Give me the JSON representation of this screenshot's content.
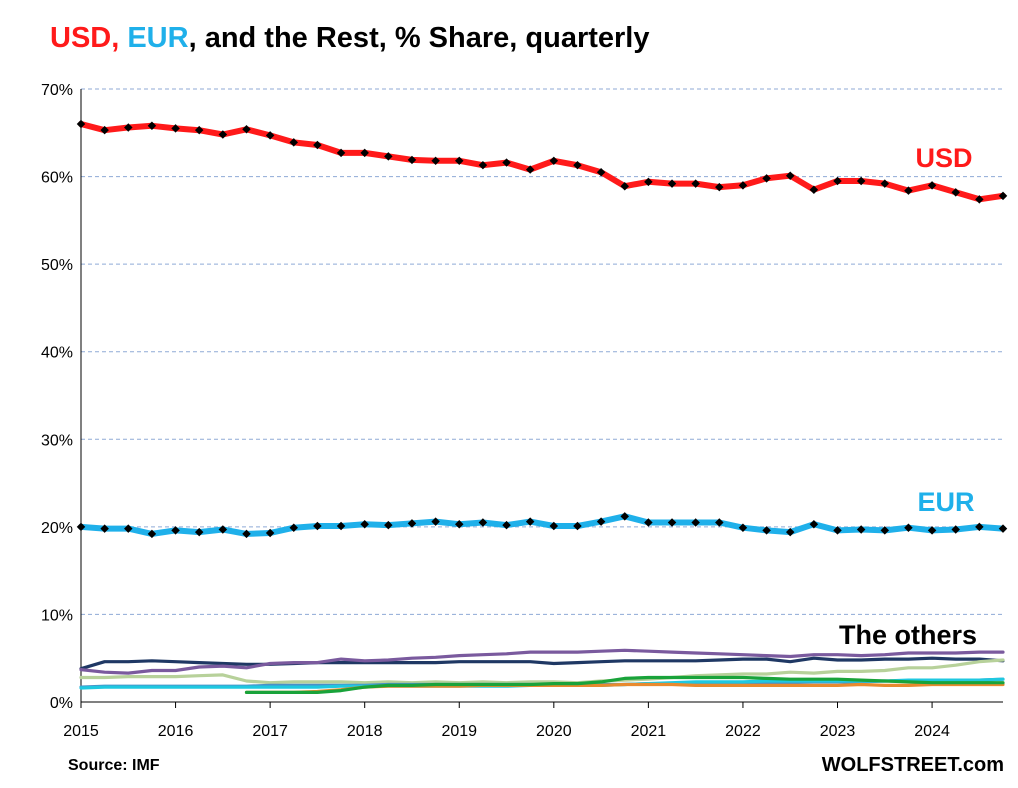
{
  "title": {
    "part1": "USD, ",
    "part2": "EUR",
    "part3": ", and the Rest, % Share, quarterly"
  },
  "source": "Source: IMF",
  "brand": "WOLFSTREET.com",
  "chart_data": {
    "type": "line",
    "title": "USD, EUR, and the Rest, % Share, quarterly",
    "xlabel": "",
    "ylabel": "",
    "x_ticks": [
      "2015",
      "2016",
      "2017",
      "2018",
      "2019",
      "2020",
      "2021",
      "2022",
      "2023",
      "2024"
    ],
    "y_ticks": [
      "0%",
      "10%",
      "20%",
      "30%",
      "40%",
      "50%",
      "60%",
      "70%"
    ],
    "ylim": [
      0,
      70
    ],
    "x_range": [
      "2015 Q1",
      "2024 Q4"
    ],
    "grid": "horizontal dashed",
    "annotations": [
      "USD",
      "EUR",
      "The others"
    ],
    "series": [
      {
        "name": "USD",
        "label": "USD",
        "color": "#ff1a1a",
        "markers": true,
        "start": "2015 Q1",
        "values": [
          66.0,
          65.3,
          65.6,
          65.8,
          65.5,
          65.3,
          64.8,
          65.4,
          64.7,
          63.9,
          63.6,
          62.7,
          62.7,
          62.3,
          61.9,
          61.8,
          61.8,
          61.3,
          61.6,
          60.8,
          61.8,
          61.3,
          60.5,
          58.9,
          59.4,
          59.2,
          59.2,
          58.8,
          59.0,
          59.8,
          60.1,
          58.5,
          59.5,
          59.5,
          59.2,
          58.4,
          59.0,
          58.2,
          57.4,
          57.8
        ]
      },
      {
        "name": "EUR",
        "label": "EUR",
        "color": "#1fb0ea",
        "markers": true,
        "start": "2015 Q1",
        "values": [
          20.0,
          19.8,
          19.8,
          19.2,
          19.6,
          19.4,
          19.7,
          19.2,
          19.3,
          19.9,
          20.1,
          20.1,
          20.3,
          20.2,
          20.4,
          20.6,
          20.3,
          20.5,
          20.2,
          20.6,
          20.1,
          20.1,
          20.6,
          21.2,
          20.5,
          20.5,
          20.5,
          20.5,
          19.9,
          19.6,
          19.4,
          20.3,
          19.6,
          19.7,
          19.6,
          19.9,
          19.6,
          19.7,
          20.0,
          19.8
        ]
      },
      {
        "color": "#1f3864",
        "start": "2015 Q1",
        "values": [
          3.8,
          4.6,
          4.6,
          4.7,
          4.6,
          4.5,
          4.4,
          4.3,
          4.3,
          4.4,
          4.5,
          4.5,
          4.5,
          4.5,
          4.5,
          4.5,
          4.6,
          4.6,
          4.6,
          4.6,
          4.4,
          4.5,
          4.6,
          4.7,
          4.7,
          4.7,
          4.7,
          4.8,
          4.9,
          4.9,
          4.6,
          5.0,
          4.8,
          4.8,
          4.9,
          4.9,
          5.0,
          4.9,
          4.9,
          4.7
        ]
      },
      {
        "color": "#7a5a9e",
        "start": "2015 Q1",
        "values": [
          3.7,
          3.4,
          3.3,
          3.6,
          3.6,
          4.0,
          4.1,
          3.9,
          4.4,
          4.5,
          4.5,
          4.9,
          4.7,
          4.8,
          5.0,
          5.1,
          5.3,
          5.4,
          5.5,
          5.7,
          5.7,
          5.7,
          5.8,
          5.9,
          5.8,
          5.7,
          5.6,
          5.5,
          5.4,
          5.3,
          5.2,
          5.4,
          5.4,
          5.3,
          5.4,
          5.6,
          5.6,
          5.6,
          5.7,
          5.7
        ]
      },
      {
        "color": "#b7d19a",
        "start": "2015 Q1",
        "values": [
          2.8,
          2.8,
          2.9,
          2.9,
          2.9,
          3.0,
          3.1,
          2.4,
          2.2,
          2.3,
          2.3,
          2.3,
          2.2,
          2.3,
          2.2,
          2.3,
          2.2,
          2.3,
          2.2,
          2.3,
          2.3,
          2.2,
          2.4,
          2.5,
          2.6,
          2.8,
          3.0,
          3.1,
          3.2,
          3.2,
          3.4,
          3.3,
          3.5,
          3.5,
          3.6,
          3.9,
          3.9,
          4.2,
          4.6,
          4.8
        ]
      },
      {
        "color": "#4a90c8",
        "start": "2015 Q1",
        "values": [
          1.7,
          1.8,
          1.8,
          1.8,
          1.8,
          1.8,
          1.8,
          1.8,
          1.9,
          1.9,
          1.9,
          1.9,
          1.9,
          2.0,
          2.0,
          2.0,
          2.0,
          2.0,
          2.0,
          2.0,
          1.9,
          2.0,
          2.0,
          2.0,
          2.1,
          2.1,
          2.1,
          2.2,
          2.2,
          2.2,
          2.2,
          2.3,
          2.3,
          2.3,
          2.4,
          2.4,
          2.4,
          2.4,
          2.5,
          2.6
        ]
      },
      {
        "color": "#1fc8e0",
        "start": "2015 Q1",
        "values": [
          1.6,
          1.7,
          1.7,
          1.7,
          1.7,
          1.7,
          1.7,
          1.7,
          1.7,
          1.7,
          1.7,
          1.8,
          1.8,
          1.8,
          1.8,
          1.8,
          1.8,
          1.8,
          1.8,
          1.9,
          1.9,
          1.9,
          1.9,
          2.0,
          2.1,
          2.2,
          2.3,
          2.3,
          2.3,
          2.4,
          2.4,
          2.4,
          2.4,
          2.4,
          2.4,
          2.5,
          2.5,
          2.5,
          2.5,
          2.6
        ]
      },
      {
        "color": "#e88a2e",
        "start": "2016 Q4",
        "values": [
          1.1,
          1.1,
          1.1,
          1.2,
          1.4,
          1.7,
          1.8,
          1.8,
          1.8,
          1.8,
          1.9,
          1.9,
          1.9,
          1.9,
          1.9,
          1.9,
          2.0,
          2.0,
          2.0,
          1.9,
          1.9,
          1.9,
          1.9,
          1.9,
          1.9,
          1.9,
          2.0,
          1.9,
          1.9,
          2.0,
          2.0,
          2.0,
          2.0
        ]
      },
      {
        "color": "#19a33a",
        "start": "2016 Q4",
        "values": [
          1.1,
          1.1,
          1.1,
          1.1,
          1.3,
          1.7,
          1.9,
          1.9,
          2.0,
          2.0,
          2.0,
          2.0,
          2.0,
          2.1,
          2.1,
          2.3,
          2.7,
          2.8,
          2.8,
          2.8,
          2.8,
          2.8,
          2.7,
          2.6,
          2.6,
          2.6,
          2.5,
          2.4,
          2.3,
          2.2,
          2.2,
          2.2,
          2.2
        ]
      }
    ]
  }
}
